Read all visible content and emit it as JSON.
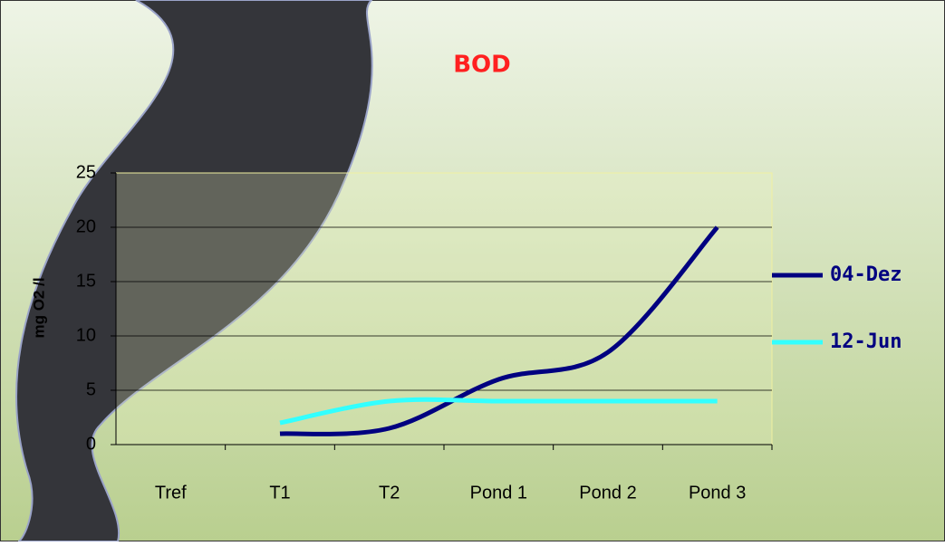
{
  "chart_data": {
    "type": "line",
    "title": "BOD",
    "y_label": "mg O2 /l",
    "categories": [
      "Tref",
      "T1",
      "T2",
      "Pond 1",
      "Pond 2",
      "Pond 3"
    ],
    "series": [
      {
        "name": "04-Dez",
        "color": "#000080",
        "values": [
          null,
          1,
          1.5,
          6,
          8.5,
          20
        ]
      },
      {
        "name": "12-Jun",
        "color": "#33ffff",
        "values": [
          null,
          2,
          4,
          4,
          4,
          4
        ]
      }
    ],
    "ylim": [
      0,
      25
    ],
    "yticks": [
      0,
      5,
      10,
      15,
      20,
      25
    ],
    "grid": true,
    "smooth": true,
    "legend": "right"
  }
}
